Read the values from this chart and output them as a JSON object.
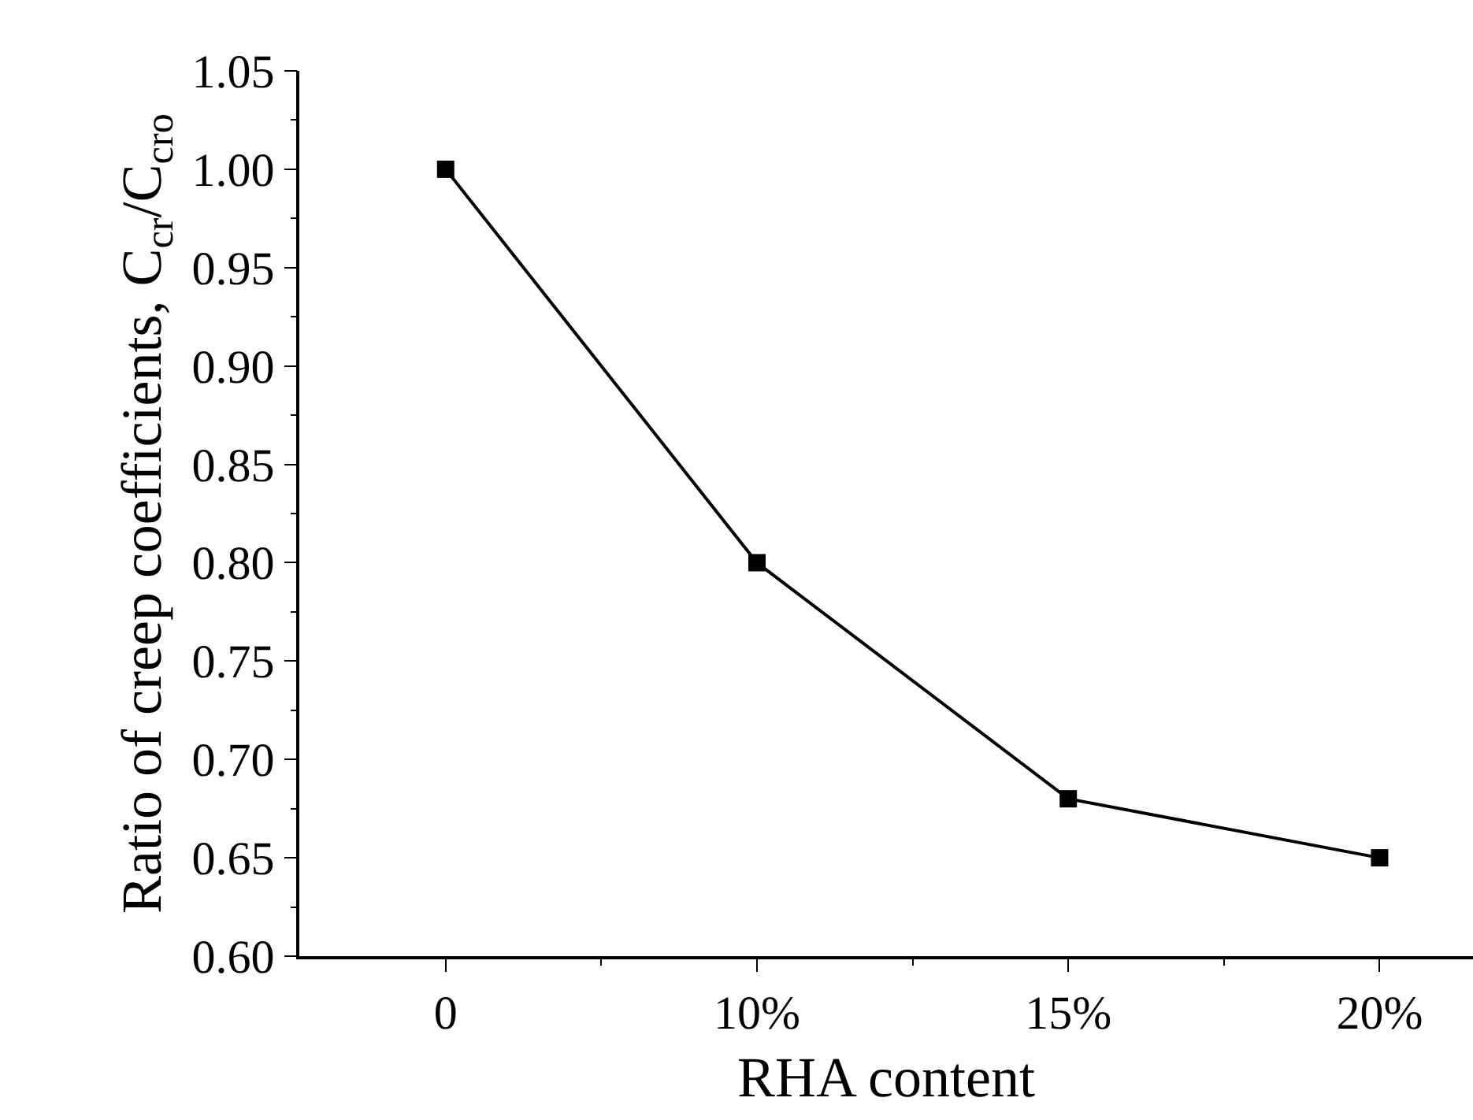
{
  "chart_data": {
    "type": "line",
    "xlabel": "RHA content",
    "ylabel": "Ratio of creep coefficients, C$_{cr}$/C$_{cro}$",
    "categories": [
      "0",
      "10%",
      "15%",
      "20%"
    ],
    "series": [
      {
        "color": "#000000",
        "values": [
          1.0,
          0.8,
          0.68,
          0.65
        ]
      }
    ],
    "ylim": [
      0.6,
      1.05
    ],
    "yticks": [
      {
        "value": 0.6,
        "label": "0.60"
      },
      {
        "value": 0.65,
        "label": "0.65"
      },
      {
        "value": 0.7,
        "label": "0.70"
      },
      {
        "value": 0.75,
        "label": "0.75"
      },
      {
        "value": 0.8,
        "label": "0.80"
      },
      {
        "value": 0.85,
        "label": "0.85"
      },
      {
        "value": 0.9,
        "label": "0.90"
      },
      {
        "value": 0.95,
        "label": "0.95"
      },
      {
        "value": 1.0,
        "label": "1.00"
      },
      {
        "value": 1.05,
        "label": "1.05"
      }
    ],
    "marker": "square",
    "line_style": "solid"
  }
}
